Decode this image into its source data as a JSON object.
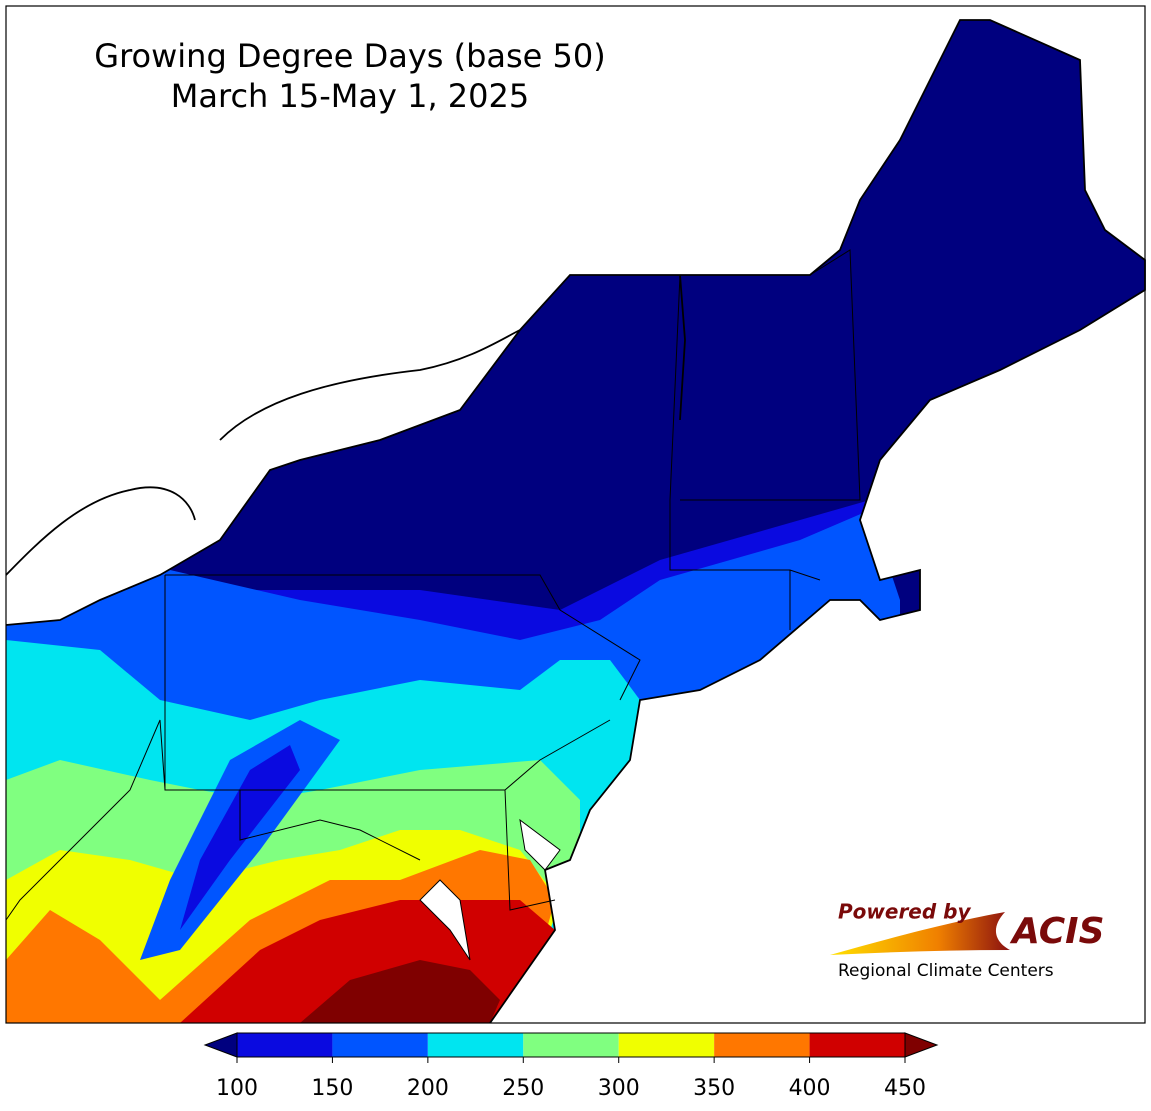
{
  "title": "Growing Degree Days (base 50)",
  "subtitle": "March 15-May 1, 2025",
  "colorbar": {
    "ticks": [
      100,
      150,
      200,
      250,
      300,
      350,
      400,
      450
    ],
    "colors": [
      "#0a0ae0",
      "#0055ff",
      "#00e5f0",
      "#80ff80",
      "#f0ff00",
      "#ff7700",
      "#d00000"
    ],
    "under_color": "#00007f",
    "over_color": "#7f0000"
  },
  "logo": {
    "powered_by": "Powered by",
    "name": "ACIS",
    "tagline": "Regional Climate Centers"
  }
}
